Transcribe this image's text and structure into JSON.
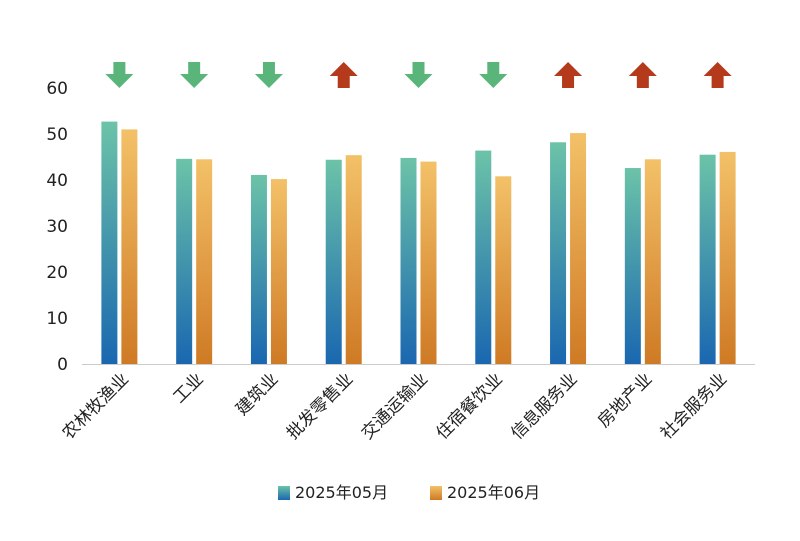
{
  "chart_data": {
    "type": "bar",
    "title": "",
    "xlabel": "",
    "ylabel": "",
    "ylim": [
      0,
      60
    ],
    "yticks": [
      0,
      10,
      20,
      30,
      40,
      50,
      60
    ],
    "grid": false,
    "legend_position": "bottom",
    "categories": [
      "农林牧渔业",
      "工业",
      "建筑业",
      "批发零售业",
      "交通运输业",
      "住宿餐饮业",
      "信息服务业",
      "房地产业",
      "社会服务业"
    ],
    "series": [
      {
        "name": "2025年05月",
        "values": [
          52.7,
          44.6,
          41.1,
          44.4,
          44.8,
          46.4,
          48.2,
          42.6,
          45.5
        ]
      },
      {
        "name": "2025年06月",
        "values": [
          51.0,
          44.5,
          40.2,
          45.4,
          44.0,
          40.8,
          50.2,
          44.5,
          46.1
        ]
      }
    ],
    "trend_arrows": [
      "down",
      "down",
      "down",
      "up",
      "down",
      "down",
      "up",
      "up",
      "up"
    ],
    "colors": {
      "series1_top": "#6cc3a8",
      "series1_bottom": "#1a67b0",
      "series2_top": "#f3c168",
      "series2_bottom": "#cf7a24",
      "arrow_up": "#b53a1c",
      "arrow_down": "#5ab57a",
      "axis": "#cccccc"
    }
  }
}
